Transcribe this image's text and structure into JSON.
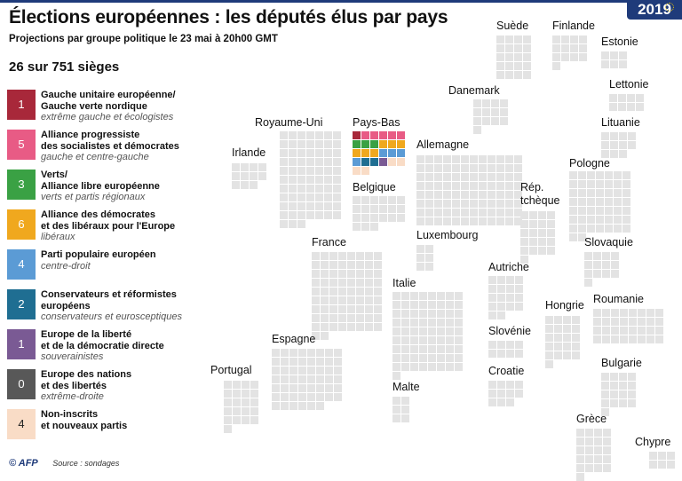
{
  "header": {
    "title": "Élections européennes : les députés élus par pays",
    "subtitle": "Projections par groupe politique le 23 mai à 20h00 GMT",
    "year": "2019",
    "seat_summary": "26 sur 751 sièges"
  },
  "legend": [
    {
      "count": "1",
      "name": "Gauche unitaire européenne/\nGauche verte nordique",
      "desc": "extrême gauche et écologistes",
      "color": "#a8283a"
    },
    {
      "count": "5",
      "name": "Alliance progressiste\ndes socialistes et démocrates",
      "desc": "gauche et centre-gauche",
      "color": "#e85b85"
    },
    {
      "count": "3",
      "name": "Verts/\nAlliance libre européenne",
      "desc": "verts et partis régionaux",
      "color": "#3aa144"
    },
    {
      "count": "6",
      "name": "Alliance des démocrates\net des libéraux pour l'Europe",
      "desc": "libéraux",
      "color": "#f0a81e"
    },
    {
      "count": "4",
      "name": "Parti populaire européen",
      "desc": "centre-droit",
      "color": "#5b9bd5"
    },
    {
      "count": "2",
      "name": "Conservateurs et réformistes\neuropéens",
      "desc": "conservateurs et eurosceptiques",
      "color": "#1f6e92"
    },
    {
      "count": "1",
      "name": "Europe de la liberté\net de la démocratie directe",
      "desc": "souverainistes",
      "color": "#7a5a94"
    },
    {
      "count": "0",
      "name": "Europe des nations\net des libertés",
      "desc": "extrême-droite",
      "color": "#585858"
    },
    {
      "count": "4",
      "name": "Non-inscrits\net nouveaux partis",
      "desc": "",
      "color": "#f9dcc6",
      "text_color": "#222"
    }
  ],
  "chart_data": {
    "type": "waffle",
    "title": "Élections européennes : les députés élus par pays",
    "unit": "sièges",
    "filled_seats": 26,
    "total_seats": 751,
    "countries": [
      {
        "name": "Suède",
        "seats": 20
      },
      {
        "name": "Finlande",
        "seats": 13
      },
      {
        "name": "Estonie",
        "seats": 6
      },
      {
        "name": "Lettonie",
        "seats": 8
      },
      {
        "name": "Danemark",
        "seats": 13
      },
      {
        "name": "Lituanie",
        "seats": 11
      },
      {
        "name": "Royaume-Uni",
        "seats": 73
      },
      {
        "name": "Pays-Bas",
        "seats": 26,
        "results": [
          {
            "group": "Gauche unitaire européenne/ Gauche verte nordique",
            "seats": 1
          },
          {
            "group": "Alliance progressiste des socialistes et démocrates",
            "seats": 5
          },
          {
            "group": "Verts/ Alliance libre européenne",
            "seats": 3
          },
          {
            "group": "Alliance des démocrates et des libéraux pour l'Europe",
            "seats": 6
          },
          {
            "group": "Parti populaire européen",
            "seats": 4
          },
          {
            "group": "Conservateurs et réformistes européens",
            "seats": 2
          },
          {
            "group": "Europe de la liberté et de la démocratie directe",
            "seats": 1
          },
          {
            "group": "Europe des nations et des libertés",
            "seats": 0
          },
          {
            "group": "Non-inscrits et nouveaux partis",
            "seats": 4
          }
        ]
      },
      {
        "name": "Irlande",
        "seats": 11
      },
      {
        "name": "Allemagne",
        "seats": 96
      },
      {
        "name": "Pologne",
        "seats": 51
      },
      {
        "name": "Belgique",
        "seats": 21
      },
      {
        "name": "Rép.\ntchèque",
        "seats": 21
      },
      {
        "name": "France",
        "seats": 74
      },
      {
        "name": "Luxembourg",
        "seats": 6
      },
      {
        "name": "Slovaquie",
        "seats": 13
      },
      {
        "name": "Autriche",
        "seats": 18
      },
      {
        "name": "Roumanie",
        "seats": 32
      },
      {
        "name": "Italie",
        "seats": 73
      },
      {
        "name": "Hongrie",
        "seats": 21
      },
      {
        "name": "Slovénie",
        "seats": 8
      },
      {
        "name": "Espagne",
        "seats": 54
      },
      {
        "name": "Bulgarie",
        "seats": 17
      },
      {
        "name": "Croatie",
        "seats": 11
      },
      {
        "name": "Portugal",
        "seats": 21
      },
      {
        "name": "Malte",
        "seats": 6
      },
      {
        "name": "Grèce",
        "seats": 21
      },
      {
        "name": "Chypre",
        "seats": 6
      }
    ]
  },
  "colors": {
    "empty_seat": "#e3e3e3",
    "brand": "#1f3b7a"
  },
  "footer": {
    "credit": "© AFP",
    "source": "Source : sondages"
  }
}
